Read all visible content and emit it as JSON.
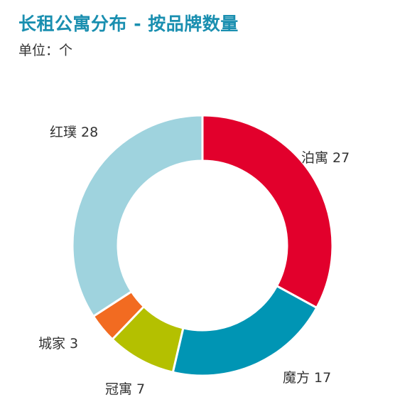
{
  "chart_data": {
    "type": "pie",
    "title": "长租公寓分布 - 按品牌数量",
    "subtitle": "单位：个",
    "categories": [
      "泊寓",
      "魔方",
      "冠寓",
      "城家",
      "红璞"
    ],
    "values": [
      27,
      17,
      7,
      3,
      28
    ],
    "colors": [
      "#e2002c",
      "#0095b4",
      "#b4c000",
      "#f26b21",
      "#9fd3de"
    ],
    "labels": [
      "泊寓 27",
      "魔方 17",
      "冠寓 7",
      "城家 3",
      "红璞 28"
    ],
    "legend": "none",
    "style": "donut"
  }
}
